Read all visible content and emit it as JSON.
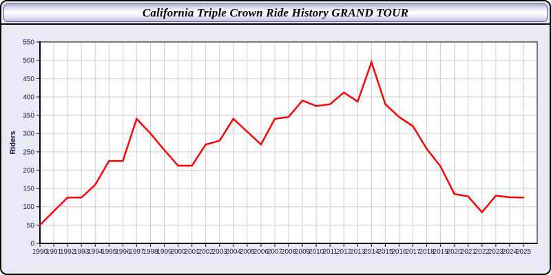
{
  "window": {
    "title_bind_note": "title shown in header equals chart title"
  },
  "chart_data": {
    "type": "line",
    "title": "California Triple Crown Ride History GRAND TOUR",
    "xlabel": "",
    "ylabel": "Riders",
    "categories": [
      1990,
      1991,
      1992,
      1993,
      1994,
      1995,
      1996,
      1997,
      1998,
      1999,
      2000,
      2001,
      2002,
      2003,
      2004,
      2005,
      2006,
      2007,
      2008,
      2009,
      2010,
      2011,
      2012,
      2013,
      2014,
      2015,
      2016,
      2017,
      2018,
      2019,
      2020,
      2021,
      2022,
      2023,
      2024,
      2025
    ],
    "series": [
      {
        "name": "Riders",
        "values": [
          50,
          88,
          125,
          125,
          160,
          225,
          225,
          340,
          300,
          255,
          212,
          212,
          270,
          280,
          340,
          305,
          270,
          340,
          345,
          390,
          375,
          380,
          412,
          387,
          495,
          380,
          345,
          320,
          258,
          210,
          135,
          128,
          85,
          130,
          126,
          125
        ]
      }
    ],
    "ylim": [
      0,
      550
    ],
    "ytick_step": 50,
    "grid": true,
    "legend_position": "none"
  },
  "colors": {
    "line": "#ff0000",
    "plot_bg": "#ffffff",
    "grid": "#cccccc",
    "axis": "#000000",
    "tick_label": "#16163f",
    "window_bg": "#e9e9f8"
  }
}
